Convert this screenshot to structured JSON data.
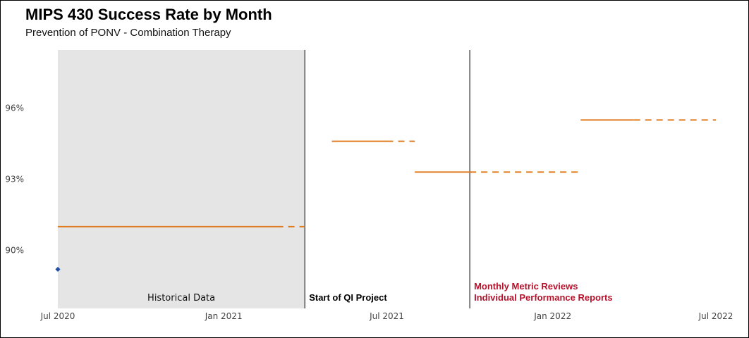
{
  "chart_data": {
    "type": "line",
    "title": "MIPS 430 Success Rate by Month",
    "subtitle": "Prevention of PONV - Combination Therapy",
    "xlabel": "",
    "ylabel": "",
    "x_ticks": [
      "Jul 2020",
      "Jan 2021",
      "Jul 2021",
      "Jan 2022",
      "Jul 2022"
    ],
    "x_tick_dates": [
      "2020-07-01",
      "2021-01-01",
      "2021-07-01",
      "2022-01-01",
      "2022-07-01"
    ],
    "xlim": [
      "2020-07-01",
      "2022-07-01"
    ],
    "y_ticks": [
      "90%",
      "93%",
      "96%"
    ],
    "y_tick_values": [
      0.9,
      0.93,
      0.96
    ],
    "ylim": [
      0.8755,
      0.9845
    ],
    "grid": false,
    "shaded_region": {
      "label": "Historical Data",
      "from": "2020-07-01",
      "to": "2021-04-01",
      "color": "#e5e5e5"
    },
    "annotations": [
      {
        "date": "2021-04-01",
        "lines": [
          "Start of QI Project"
        ],
        "color": "#000000"
      },
      {
        "date": "2021-10-01",
        "lines": [
          "Monthly Metric Reviews",
          "Individual Performance Reports"
        ],
        "color": "#b5122b"
      }
    ],
    "center_lines": [
      {
        "from": "2020-07-01",
        "solid_to": "2021-03-01",
        "dashed_to": "2021-04-01",
        "value": 0.91
      },
      {
        "from": "2021-05-01",
        "solid_to": "2021-07-01",
        "dashed_to": "2021-08-01",
        "value": 0.946
      },
      {
        "from": "2021-08-01",
        "solid_to": "2021-10-01",
        "dashed_to": "2022-02-01",
        "value": 0.933
      },
      {
        "from": "2022-02-01",
        "solid_to": "2022-04-01",
        "dashed_to": "2022-07-01",
        "value": 0.955
      }
    ],
    "center_line_color": "#e07a1f",
    "series": [
      {
        "x": [
          "2020-07-01"
        ],
        "values": [
          0.892
        ],
        "color": "#1f4fa3"
      }
    ]
  }
}
